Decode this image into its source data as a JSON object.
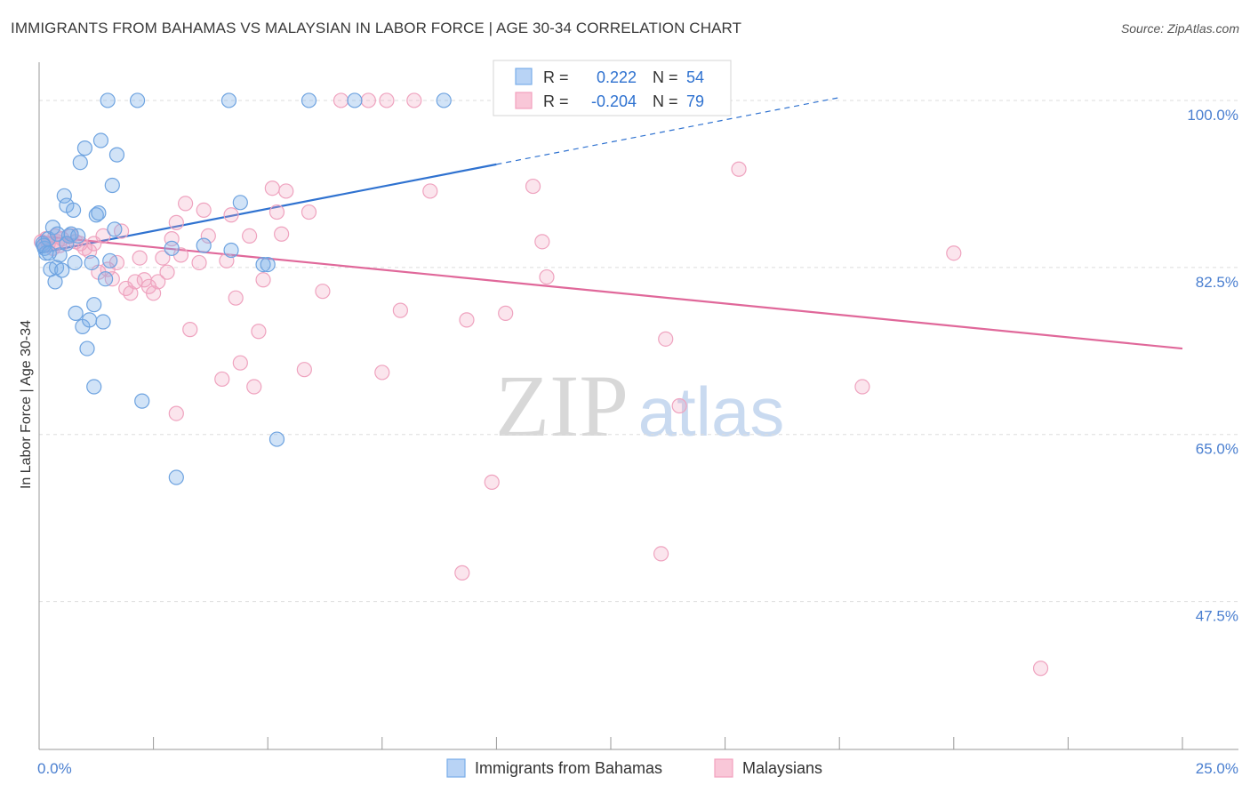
{
  "title": "IMMIGRANTS FROM BAHAMAS VS MALAYSIAN IN LABOR FORCE | AGE 30-34 CORRELATION CHART",
  "source": "Source: ZipAtlas.com",
  "watermark": {
    "zip": "ZIP",
    "atlas": "atlas"
  },
  "colors": {
    "blue": "#7aaee8",
    "blue_line": "#2f72d0",
    "pink": "#f2a0bd",
    "pink_line": "#e0689a",
    "tick_label": "#4a7fd0",
    "grid": "#dddddd"
  },
  "legend": {
    "rows": [
      {
        "r_label": "R =",
        "r_value": "0.222",
        "n_label": "N =",
        "n_value": "54"
      },
      {
        "r_label": "R =",
        "r_value": "-0.204",
        "n_label": "N =",
        "n_value": "79"
      }
    ]
  },
  "chart_data": {
    "type": "scatter",
    "xlabel": "",
    "ylabel": "In Labor Force | Age 30-34",
    "xlim": [
      0,
      25
    ],
    "ylim": [
      32,
      104
    ],
    "x_tick_labels": [
      "0.0%",
      "25.0%"
    ],
    "y_ticks": [
      47.5,
      65.0,
      82.5,
      100.0
    ],
    "y_tick_labels": [
      "47.5%",
      "65.0%",
      "82.5%",
      "100.0%"
    ],
    "grid": true,
    "legend_position": "top-center",
    "series": [
      {
        "name": "Immigrants from Bahamas",
        "color": "#7aaee8",
        "trend": {
          "x": [
            0.0,
            10.0
          ],
          "y": [
            84.0,
            93.3
          ],
          "dashed_to": [
            17.5,
            100.3
          ]
        },
        "points": [
          [
            0.08,
            85.0
          ],
          [
            0.12,
            84.5
          ],
          [
            0.15,
            84.0
          ],
          [
            0.2,
            85.5
          ],
          [
            0.25,
            82.3
          ],
          [
            0.3,
            86.7
          ],
          [
            0.35,
            81.0
          ],
          [
            0.38,
            82.5
          ],
          [
            0.45,
            83.8
          ],
          [
            0.5,
            82.2
          ],
          [
            0.55,
            90.0
          ],
          [
            0.6,
            89.0
          ],
          [
            0.65,
            85.8
          ],
          [
            0.7,
            86.0
          ],
          [
            0.75,
            88.5
          ],
          [
            0.78,
            83.0
          ],
          [
            0.8,
            77.7
          ],
          [
            0.85,
            85.8
          ],
          [
            0.9,
            93.5
          ],
          [
            0.95,
            76.3
          ],
          [
            1.0,
            95.0
          ],
          [
            1.05,
            74.0
          ],
          [
            1.1,
            77.0
          ],
          [
            1.15,
            83.0
          ],
          [
            1.2,
            78.6
          ],
          [
            1.2,
            70.0
          ],
          [
            1.25,
            88.0
          ],
          [
            1.3,
            88.2
          ],
          [
            1.35,
            95.8
          ],
          [
            1.4,
            76.8
          ],
          [
            1.45,
            81.3
          ],
          [
            1.5,
            100.0
          ],
          [
            1.55,
            83.2
          ],
          [
            1.6,
            91.1
          ],
          [
            1.65,
            86.5
          ],
          [
            1.7,
            94.3
          ],
          [
            2.25,
            68.5
          ],
          [
            2.15,
            100.0
          ],
          [
            2.9,
            84.5
          ],
          [
            3.0,
            60.5
          ],
          [
            3.6,
            84.8
          ],
          [
            4.15,
            100.0
          ],
          [
            4.2,
            84.3
          ],
          [
            4.4,
            89.3
          ],
          [
            4.9,
            82.8
          ],
          [
            5.0,
            82.8
          ],
          [
            5.2,
            64.5
          ],
          [
            5.9,
            100.0
          ],
          [
            6.9,
            100.0
          ],
          [
            8.85,
            100.0
          ],
          [
            0.1,
            84.8
          ],
          [
            0.22,
            84.0
          ],
          [
            0.4,
            86.0
          ],
          [
            0.6,
            85.0
          ]
        ]
      },
      {
        "name": "Malaysians",
        "color": "#f2a0bd",
        "trend": {
          "x": [
            0.0,
            25.0
          ],
          "y": [
            85.8,
            74.0
          ]
        },
        "points": [
          [
            0.05,
            85.2
          ],
          [
            0.1,
            84.8
          ],
          [
            0.15,
            85.5
          ],
          [
            0.2,
            85.0
          ],
          [
            0.3,
            84.5
          ],
          [
            0.35,
            85.8
          ],
          [
            0.4,
            85.2
          ],
          [
            0.45,
            84.8
          ],
          [
            0.5,
            85.5
          ],
          [
            0.6,
            85.0
          ],
          [
            0.7,
            85.8
          ],
          [
            0.8,
            85.2
          ],
          [
            0.9,
            85.0
          ],
          [
            1.0,
            84.5
          ],
          [
            1.1,
            84.2
          ],
          [
            1.2,
            85.0
          ],
          [
            1.3,
            82.0
          ],
          [
            1.4,
            85.8
          ],
          [
            1.5,
            82.3
          ],
          [
            1.6,
            81.3
          ],
          [
            1.7,
            83.0
          ],
          [
            1.8,
            86.3
          ],
          [
            1.9,
            80.3
          ],
          [
            2.0,
            79.8
          ],
          [
            2.1,
            81.0
          ],
          [
            2.2,
            83.5
          ],
          [
            2.3,
            81.2
          ],
          [
            2.4,
            80.5
          ],
          [
            2.5,
            79.8
          ],
          [
            2.6,
            81.0
          ],
          [
            2.7,
            83.5
          ],
          [
            2.8,
            82.0
          ],
          [
            2.9,
            85.5
          ],
          [
            3.0,
            87.2
          ],
          [
            3.1,
            83.8
          ],
          [
            3.2,
            89.2
          ],
          [
            3.3,
            76.0
          ],
          [
            3.5,
            83.0
          ],
          [
            3.6,
            88.5
          ],
          [
            3.7,
            85.8
          ],
          [
            4.0,
            70.8
          ],
          [
            4.1,
            83.2
          ],
          [
            4.2,
            88.0
          ],
          [
            4.3,
            79.3
          ],
          [
            4.4,
            72.5
          ],
          [
            4.6,
            85.8
          ],
          [
            4.7,
            70.0
          ],
          [
            4.8,
            75.8
          ],
          [
            4.9,
            81.2
          ],
          [
            5.1,
            90.8
          ],
          [
            5.2,
            88.3
          ],
          [
            5.3,
            86.0
          ],
          [
            5.4,
            90.5
          ],
          [
            5.8,
            71.8
          ],
          [
            5.9,
            88.3
          ],
          [
            6.2,
            80.0
          ],
          [
            6.6,
            100.0
          ],
          [
            7.2,
            100.0
          ],
          [
            7.6,
            100.0
          ],
          [
            7.5,
            71.5
          ],
          [
            7.9,
            78.0
          ],
          [
            8.2,
            100.0
          ],
          [
            8.55,
            90.5
          ],
          [
            9.25,
            50.5
          ],
          [
            9.35,
            77.0
          ],
          [
            9.9,
            60.0
          ],
          [
            10.2,
            77.7
          ],
          [
            10.5,
            100.0
          ],
          [
            10.8,
            91.0
          ],
          [
            11.0,
            85.2
          ],
          [
            11.1,
            81.5
          ],
          [
            13.6,
            52.5
          ],
          [
            13.7,
            75.0
          ],
          [
            14.0,
            68.0
          ],
          [
            15.3,
            92.8
          ],
          [
            18.0,
            70.0
          ],
          [
            20.0,
            84.0
          ],
          [
            21.9,
            40.5
          ],
          [
            3.0,
            67.2
          ]
        ]
      }
    ]
  }
}
